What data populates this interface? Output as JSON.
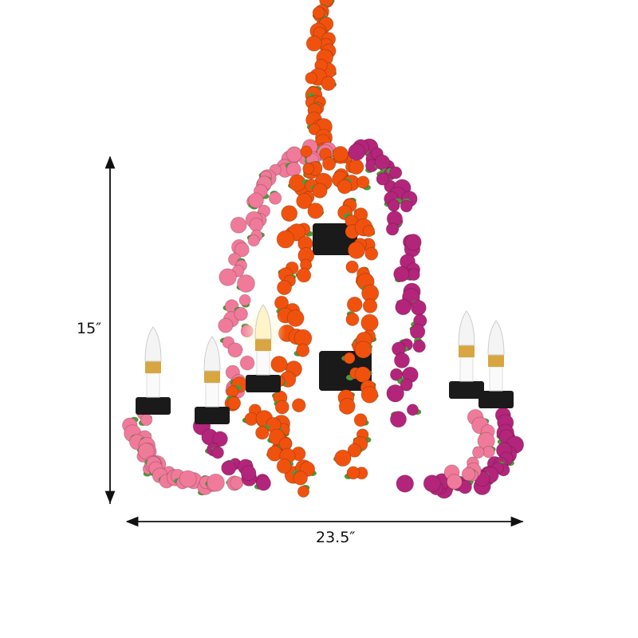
{
  "product": {
    "name": "flower-chandelier",
    "colors": {
      "pink": "#f07a9a",
      "orange": "#f0520e",
      "purple": "#b3257a",
      "leaf": "#4e9a3a",
      "metal": "#1a1a1a",
      "bulb_base": "#d8a640"
    }
  },
  "dimensions": {
    "height_label": "15″",
    "width_label": "23.5″"
  }
}
